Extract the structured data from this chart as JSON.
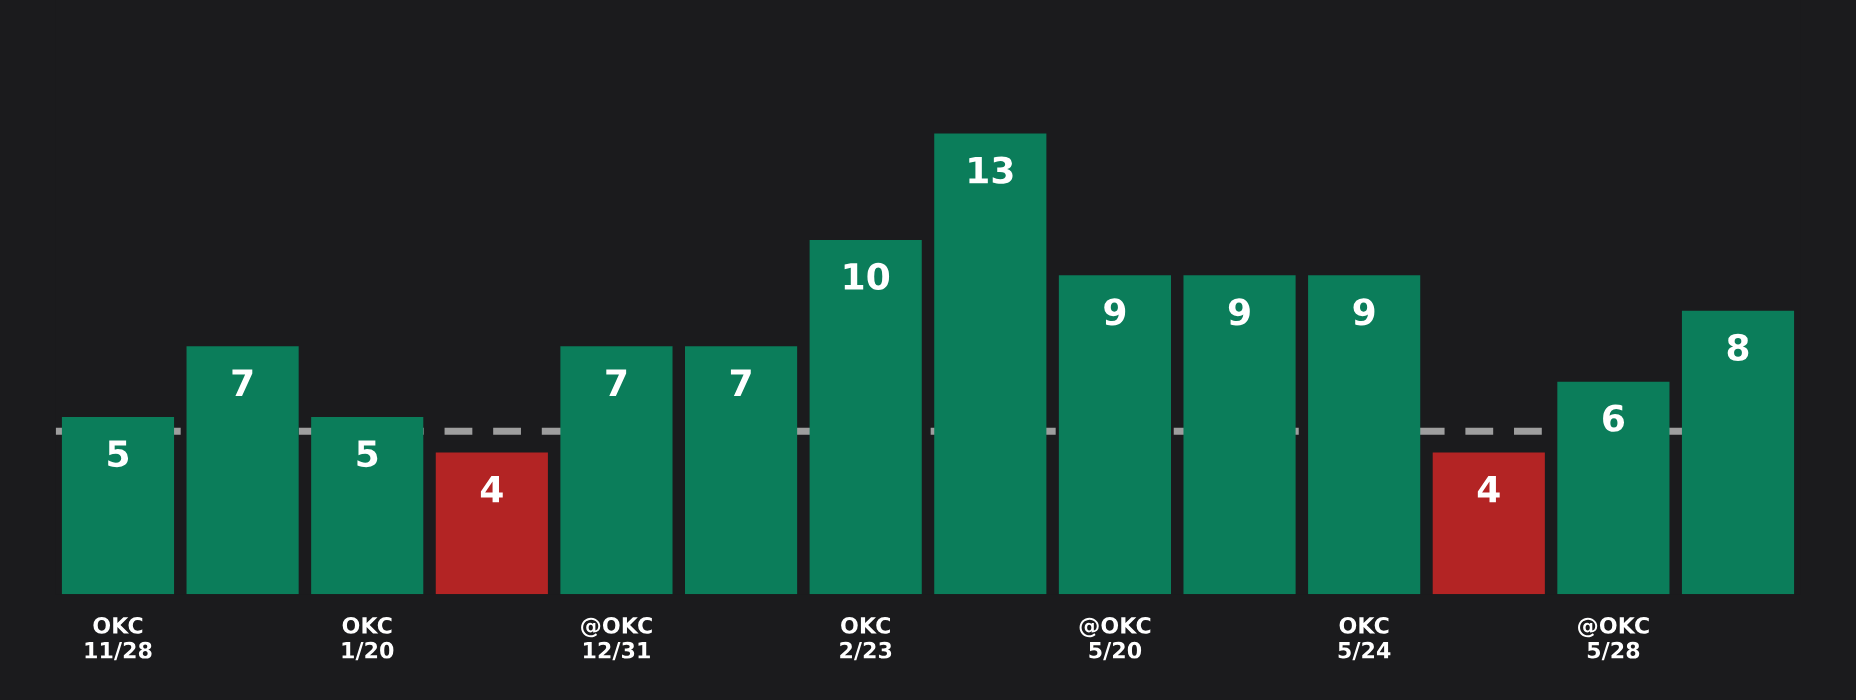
{
  "chart_data": {
    "type": "bar",
    "categories": [
      "OKC\n11/28",
      null,
      "OKC\n1/20",
      null,
      "@OKC\n12/31",
      null,
      "OKC\n2/23",
      null,
      "@OKC\n5/20",
      null,
      "OKC\n5/24",
      null,
      "@OKC\n5/28",
      null
    ],
    "values": [
      5,
      7,
      5,
      4,
      7,
      7,
      10,
      13,
      9,
      9,
      9,
      4,
      6,
      8
    ],
    "colors": [
      "#0b7d5a",
      "#0b7d5a",
      "#0b7d5a",
      "#b32424",
      "#0b7d5a",
      "#0b7d5a",
      "#0b7d5a",
      "#0b7d5a",
      "#0b7d5a",
      "#0b7d5a",
      "#0b7d5a",
      "#b32424",
      "#0b7d5a",
      "#0b7d5a"
    ],
    "ref_lines": [
      {
        "axis": "y",
        "value": 4.6,
        "color": "#9e9e9e",
        "line_style": "dashed"
      }
    ],
    "data_labels": true,
    "tick_labels": "x",
    "grid": false,
    "legend": false
  }
}
